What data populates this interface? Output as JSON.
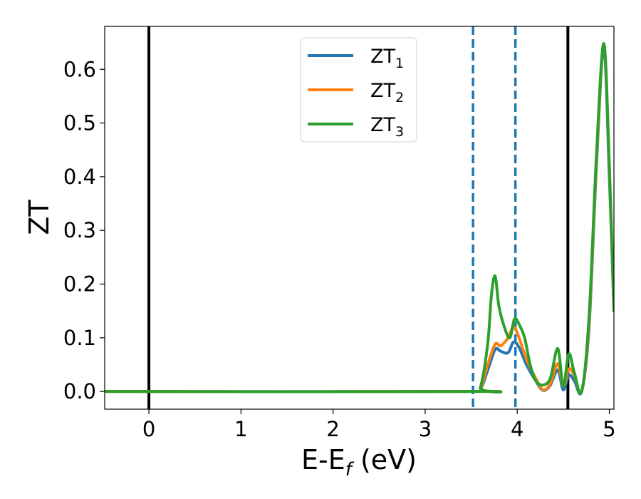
{
  "chart_data": {
    "type": "line",
    "xlabel": "E-E",
    "xlabel_sub": "f",
    "xlabel_unit": " (eV)",
    "ylabel": "ZT",
    "xlim": [
      -0.48,
      5.05
    ],
    "ylim": [
      -0.033,
      0.68
    ],
    "xticks": [
      0,
      1,
      2,
      3,
      4,
      5
    ],
    "xtick_labels": [
      "0",
      "1",
      "2",
      "3",
      "4",
      "5"
    ],
    "yticks": [
      0.0,
      0.1,
      0.2,
      0.3,
      0.4,
      0.5,
      0.6
    ],
    "ytick_labels": [
      "0.0",
      "0.1",
      "0.2",
      "0.3",
      "0.4",
      "0.5",
      "0.6"
    ],
    "grid": false,
    "legend_position": "upper-center",
    "vlines": [
      {
        "x": 0.0,
        "style": "solid",
        "color": "#000000"
      },
      {
        "x": 4.55,
        "style": "solid",
        "color": "#000000"
      },
      {
        "x": 3.52,
        "style": "dashed",
        "color": "#1f77b4"
      },
      {
        "x": 3.98,
        "style": "dashed",
        "color": "#1f77b4"
      }
    ],
    "series": [
      {
        "name": "ZT",
        "sub": "1",
        "color": "#1f77b4",
        "x": [
          -0.48,
          3.5,
          3.6,
          3.68,
          3.76,
          3.82,
          3.9,
          3.96,
          4.02,
          4.1,
          4.2,
          4.28,
          4.36,
          4.44,
          4.5,
          4.56,
          4.62,
          4.7,
          4.78,
          4.86,
          4.94,
          5.0,
          5.05
        ],
        "y": [
          0.0,
          0.0,
          0.004,
          0.04,
          0.078,
          0.075,
          0.072,
          0.092,
          0.082,
          0.05,
          0.02,
          0.002,
          0.012,
          0.04,
          0.003,
          0.03,
          0.02,
          0.0,
          0.12,
          0.42,
          0.64,
          0.4,
          0.15
        ]
      },
      {
        "name": "ZT",
        "sub": "2",
        "color": "#ff7f0e",
        "x": [
          -0.48,
          3.5,
          3.6,
          3.68,
          3.76,
          3.82,
          3.9,
          3.96,
          4.02,
          4.1,
          4.2,
          4.28,
          4.36,
          4.44,
          4.5,
          4.56,
          4.62,
          4.7,
          4.78,
          4.86,
          4.94,
          5.0,
          5.05
        ],
        "y": [
          0.0,
          0.0,
          0.005,
          0.05,
          0.088,
          0.085,
          0.1,
          0.12,
          0.1,
          0.06,
          0.025,
          0.003,
          0.015,
          0.052,
          0.01,
          0.042,
          0.03,
          0.0,
          0.13,
          0.43,
          0.645,
          0.42,
          0.15
        ]
      },
      {
        "name": "ZT",
        "sub": "3",
        "color": "#2ca02c",
        "x": [
          -0.48,
          3.5,
          3.6,
          3.68,
          3.72,
          3.76,
          3.8,
          3.86,
          3.92,
          3.97,
          4.02,
          4.08,
          4.14,
          4.2,
          4.28,
          4.36,
          4.44,
          4.5,
          4.56,
          4.62,
          4.7,
          4.78,
          4.86,
          4.94,
          5.0,
          5.05
        ],
        "y": [
          0.0,
          0.0,
          0.008,
          0.09,
          0.18,
          0.215,
          0.16,
          0.12,
          0.1,
          0.135,
          0.125,
          0.1,
          0.05,
          0.02,
          0.012,
          0.025,
          0.08,
          0.01,
          0.07,
          0.035,
          0.0,
          0.14,
          0.44,
          0.648,
          0.42,
          0.15
        ]
      }
    ]
  }
}
